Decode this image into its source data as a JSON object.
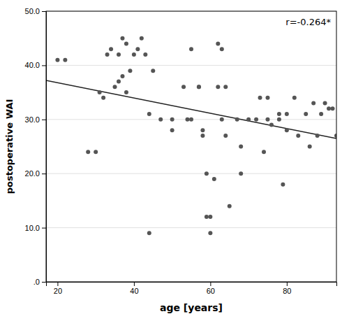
{
  "chart_data": {
    "type": "scatter",
    "xlabel": "age [years]",
    "ylabel": "postoperative WAI",
    "annotation": "r=-0.264*",
    "xlim": [
      17,
      93
    ],
    "ylim": [
      0,
      50
    ],
    "xticks": [
      20,
      40,
      60,
      80
    ],
    "yticks": [
      {
        "value": 0.0,
        "label": ".0"
      },
      {
        "value": 10.0,
        "label": "10.0"
      },
      {
        "value": 20.0,
        "label": "20.0"
      },
      {
        "value": 30.0,
        "label": "30.0"
      },
      {
        "value": 40.0,
        "label": "40.0"
      },
      {
        "value": 50.0,
        "label": "50.0"
      }
    ],
    "grid": "y",
    "series": [
      {
        "type": "scatter",
        "color": "#555555",
        "x": [
          20,
          22,
          28,
          30,
          31,
          32,
          33,
          34,
          35,
          36,
          36,
          37,
          37,
          38,
          38,
          39,
          40,
          41,
          42,
          43,
          44,
          44,
          45,
          47,
          50,
          50,
          53,
          54,
          55,
          55,
          57,
          57,
          58,
          58,
          59,
          59,
          60,
          60,
          61,
          62,
          62,
          63,
          63,
          64,
          64,
          65,
          67,
          68,
          68,
          70,
          72,
          73,
          74,
          75,
          75,
          76,
          78,
          78,
          79,
          80,
          80,
          82,
          83,
          85,
          86,
          87,
          88,
          89,
          90,
          91,
          92,
          93
        ],
        "values": [
          41,
          41,
          24,
          24,
          35,
          34,
          42,
          43,
          36,
          37,
          42,
          45,
          38,
          35,
          44,
          39,
          42,
          43,
          45,
          42,
          31,
          9,
          39,
          30,
          30,
          28,
          36,
          30,
          43,
          30,
          36,
          36,
          28,
          27,
          20,
          12,
          9,
          12,
          19,
          44,
          36,
          43,
          30,
          36,
          27,
          14,
          30,
          25,
          20,
          30,
          30,
          34,
          24,
          34,
          30,
          29,
          31,
          30,
          18,
          31,
          28,
          34,
          27,
          31,
          25,
          33,
          27,
          31,
          33,
          32,
          32,
          27
        ]
      },
      {
        "type": "line",
        "color": "#222222",
        "x": [
          17,
          93
        ],
        "values": [
          37.2,
          26.5
        ]
      }
    ]
  }
}
